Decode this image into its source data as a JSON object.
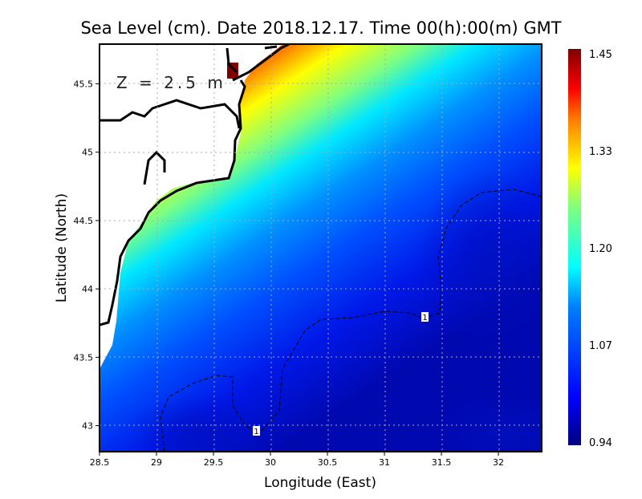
{
  "title": "Sea Level (cm). Date 2018.12.17. Time 00(h):00(m) GMT",
  "annotation": "Z = 2.5 m",
  "xlabel": "Longitude (East)",
  "ylabel": "Latitude (North)",
  "x_ticks": [
    "28.5",
    "29",
    "29.5",
    "30",
    "30.5",
    "31",
    "31.5",
    "32"
  ],
  "x_tick_values": [
    28.5,
    29,
    29.5,
    30,
    30.5,
    31,
    31.5,
    32
  ],
  "y_ticks": [
    "45.5",
    "45",
    "44.5",
    "44",
    "43.5",
    "43"
  ],
  "y_tick_values": [
    45.5,
    45,
    44.5,
    44,
    43.5,
    43
  ],
  "colorbar": {
    "labels": [
      "1.45",
      "1.33",
      "1.20",
      "1.07",
      "0.94"
    ],
    "min": 0.94,
    "max": 1.45
  },
  "contour_labels": [
    "1",
    "1"
  ],
  "chart_data": {
    "type": "heatmap",
    "title": "Sea Level (cm). Date 2018.12.17. Time 00(h):00(m) GMT",
    "xlabel": "Longitude (East)",
    "ylabel": "Latitude (North)",
    "xlim": [
      28.5,
      32.38
    ],
    "ylim": [
      42.81,
      45.79
    ],
    "value_range": [
      0.94,
      1.45
    ],
    "contour_levels": [
      1
    ],
    "grid": true,
    "colormap": [
      "#00007f",
      "#0000ff",
      "#007fff",
      "#00ffff",
      "#7fff7f",
      "#ffff00",
      "#ff7f00",
      "#ff0000",
      "#7f0000"
    ]
  }
}
